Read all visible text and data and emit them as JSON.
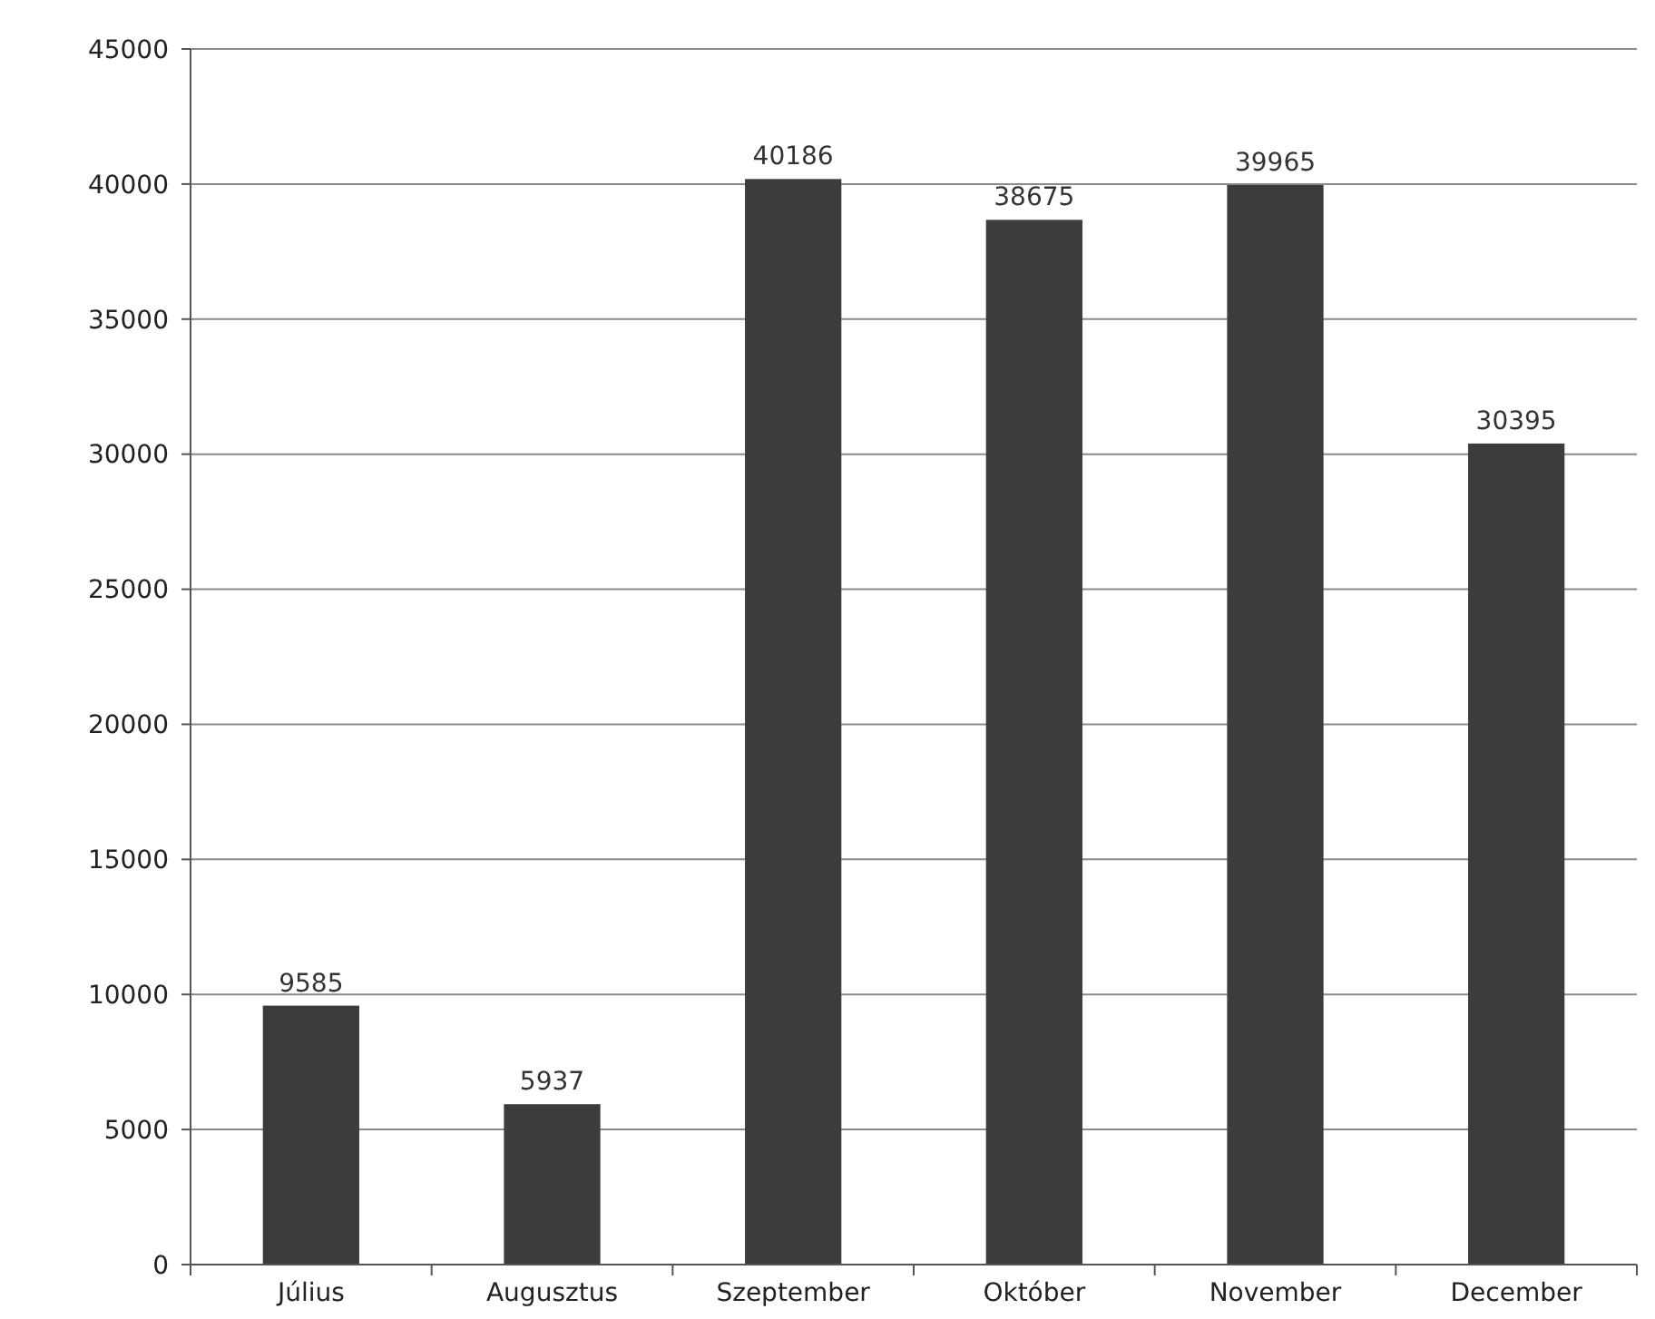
{
  "chart_data": {
    "type": "bar",
    "categories": [
      "Július",
      "Augusztus",
      "Szeptember",
      "Október",
      "November",
      "December"
    ],
    "values": [
      9585,
      5937,
      40186,
      38675,
      39965,
      30395
    ],
    "color": "#3c3c3c",
    "ylim": [
      0,
      45000
    ],
    "yticks": [
      0,
      5000,
      10000,
      15000,
      20000,
      25000,
      30000,
      35000,
      40000,
      45000
    ],
    "grid": "y",
    "data_labels": true
  }
}
